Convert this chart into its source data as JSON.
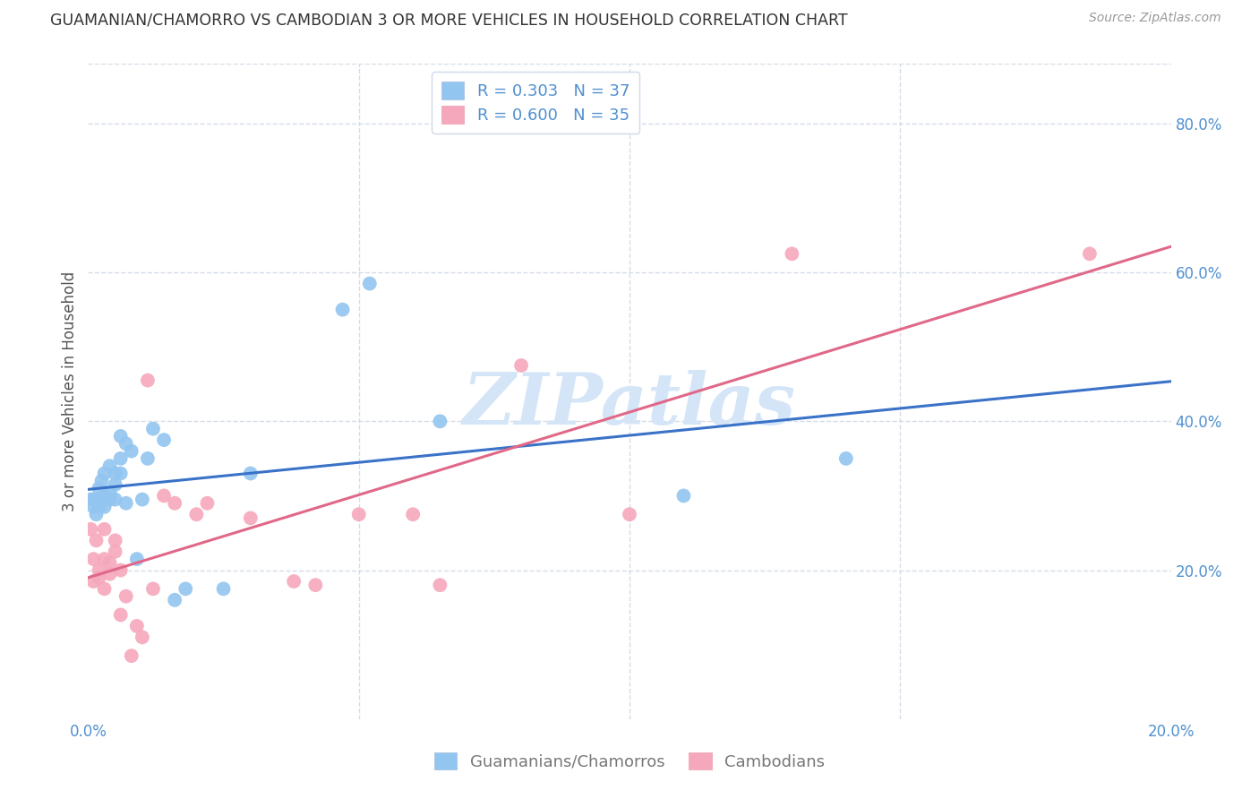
{
  "title": "GUAMANIAN/CHAMORRO VS CAMBODIAN 3 OR MORE VEHICLES IN HOUSEHOLD CORRELATION CHART",
  "source": "Source: ZipAtlas.com",
  "xlabel_blue": "Guamanians/Chamorros",
  "xlabel_pink": "Cambodians",
  "ylabel": "3 or more Vehicles in Household",
  "xlim": [
    0.0,
    0.2
  ],
  "ylim": [
    0.0,
    0.88
  ],
  "xticks": [
    0.0,
    0.2
  ],
  "yticks": [
    0.2,
    0.4,
    0.6,
    0.8
  ],
  "blue_R": 0.303,
  "blue_N": 37,
  "pink_R": 0.6,
  "pink_N": 35,
  "blue_scatter_x": [
    0.0005,
    0.001,
    0.001,
    0.0015,
    0.002,
    0.002,
    0.002,
    0.0025,
    0.003,
    0.003,
    0.003,
    0.004,
    0.004,
    0.004,
    0.005,
    0.005,
    0.005,
    0.006,
    0.006,
    0.006,
    0.007,
    0.007,
    0.008,
    0.009,
    0.01,
    0.011,
    0.012,
    0.014,
    0.016,
    0.018,
    0.025,
    0.03,
    0.047,
    0.052,
    0.065,
    0.11,
    0.14
  ],
  "blue_scatter_y": [
    0.295,
    0.285,
    0.295,
    0.275,
    0.31,
    0.295,
    0.285,
    0.32,
    0.33,
    0.3,
    0.285,
    0.34,
    0.305,
    0.295,
    0.33,
    0.315,
    0.295,
    0.38,
    0.35,
    0.33,
    0.37,
    0.29,
    0.36,
    0.215,
    0.295,
    0.35,
    0.39,
    0.375,
    0.16,
    0.175,
    0.175,
    0.33,
    0.55,
    0.585,
    0.4,
    0.3,
    0.35
  ],
  "pink_scatter_x": [
    0.0005,
    0.001,
    0.001,
    0.0015,
    0.002,
    0.002,
    0.003,
    0.003,
    0.003,
    0.004,
    0.004,
    0.005,
    0.005,
    0.006,
    0.006,
    0.007,
    0.008,
    0.009,
    0.01,
    0.011,
    0.012,
    0.014,
    0.016,
    0.02,
    0.022,
    0.03,
    0.038,
    0.042,
    0.05,
    0.06,
    0.065,
    0.08,
    0.1,
    0.13,
    0.185
  ],
  "pink_scatter_y": [
    0.255,
    0.185,
    0.215,
    0.24,
    0.19,
    0.2,
    0.255,
    0.215,
    0.175,
    0.21,
    0.195,
    0.24,
    0.225,
    0.14,
    0.2,
    0.165,
    0.085,
    0.125,
    0.11,
    0.455,
    0.175,
    0.3,
    0.29,
    0.275,
    0.29,
    0.27,
    0.185,
    0.18,
    0.275,
    0.275,
    0.18,
    0.475,
    0.275,
    0.625,
    0.625
  ],
  "blue_color": "#92C5F0",
  "pink_color": "#F5A8BC",
  "blue_line_color": "#3A72C8",
  "pink_line_color": "#E06888",
  "watermark_color": "#D5E5F8",
  "grid_color": "#D5DCE8",
  "axis_label_color": "#5090D0",
  "tick_color": "#5090D0",
  "background_color": "#FFFFFF",
  "legend_edge_color": "#D0D8E8"
}
